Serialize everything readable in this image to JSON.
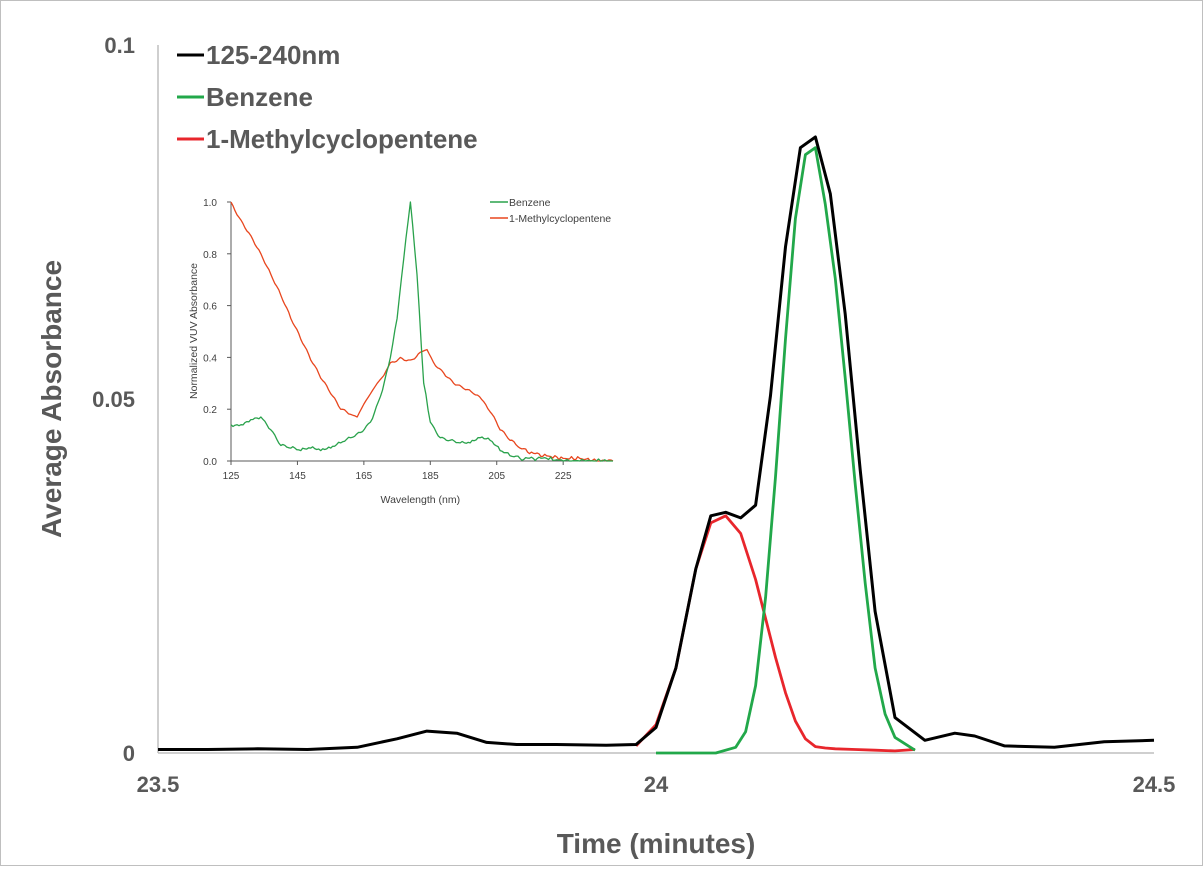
{
  "colors": {
    "total": "#000000",
    "benzene_main": "#22a84a",
    "methyl_main": "#e8262c",
    "benzene_inset": "#2aa24c",
    "methyl_inset": "#e8461e",
    "axis": "#bfbfbf",
    "text": "#595959"
  },
  "chart_data": [
    {
      "type": "line",
      "title": "",
      "xlabel": "Time (minutes)",
      "ylabel": "Average Absorbance",
      "xlim": [
        23.5,
        24.5
      ],
      "ylim": [
        0,
        0.1
      ],
      "x_ticks": [
        {
          "value": 23.5,
          "label": "23.5"
        },
        {
          "value": 24.0,
          "label": "24"
        },
        {
          "value": 24.5,
          "label": "24.5"
        }
      ],
      "y_ticks": [
        {
          "value": 0,
          "label": "0"
        },
        {
          "value": 0.05,
          "label": "0.05"
        },
        {
          "value": 0.1,
          "label": "0.1"
        }
      ],
      "grid": false,
      "legend_position": "top-left",
      "series": [
        {
          "name": "125-240nm",
          "color": "#000000",
          "x": [
            23.5,
            23.55,
            23.6,
            23.65,
            23.7,
            23.74,
            23.77,
            23.8,
            23.83,
            23.86,
            23.9,
            23.95,
            23.98,
            24.0,
            24.02,
            24.04,
            24.055,
            24.07,
            24.085,
            24.1,
            24.115,
            24.13,
            24.145,
            24.16,
            24.175,
            24.19,
            24.205,
            24.22,
            24.24,
            24.27,
            24.3,
            24.32,
            24.35,
            24.4,
            24.45,
            24.5
          ],
          "y": [
            0.0005,
            0.0005,
            0.0006,
            0.0005,
            0.0008,
            0.002,
            0.0031,
            0.0028,
            0.0015,
            0.0012,
            0.0012,
            0.0011,
            0.0012,
            0.0036,
            0.012,
            0.026,
            0.0335,
            0.034,
            0.0332,
            0.035,
            0.0505,
            0.0715,
            0.0855,
            0.087,
            0.079,
            0.062,
            0.04,
            0.02,
            0.005,
            0.0018,
            0.0028,
            0.0024,
            0.001,
            0.0008,
            0.0016,
            0.0018
          ]
        },
        {
          "name": "Benzene",
          "color": "#22a84a",
          "x": [
            24.0,
            24.06,
            24.08,
            24.09,
            24.1,
            24.11,
            24.12,
            24.13,
            24.14,
            24.15,
            24.16,
            24.17,
            24.18,
            24.19,
            24.2,
            24.21,
            24.22,
            24.23,
            24.24,
            24.26
          ],
          "y": [
            0,
            0,
            0.0008,
            0.003,
            0.0095,
            0.022,
            0.039,
            0.0585,
            0.0755,
            0.0845,
            0.0855,
            0.0775,
            0.067,
            0.053,
            0.038,
            0.024,
            0.012,
            0.0055,
            0.0022,
            0.0004
          ]
        },
        {
          "name": "1-Methylcyclopentene",
          "color": "#e8262c",
          "x": [
            23.98,
            24.0,
            24.02,
            24.04,
            24.055,
            24.07,
            24.085,
            24.1,
            24.11,
            24.12,
            24.13,
            24.14,
            24.15,
            24.16,
            24.17,
            24.18,
            24.2,
            24.22,
            24.24,
            24.26
          ],
          "y": [
            0.001,
            0.004,
            0.012,
            0.026,
            0.0325,
            0.0335,
            0.031,
            0.0245,
            0.019,
            0.0135,
            0.0085,
            0.0045,
            0.002,
            0.0009,
            0.0007,
            0.0006,
            0.0005,
            0.0004,
            0.0003,
            0.0005
          ]
        }
      ]
    },
    {
      "type": "line",
      "title": "",
      "xlabel": "Wavelength (nm)",
      "ylabel": "Normalized VUV Absorbance",
      "xlim": [
        125,
        240
      ],
      "ylim": [
        0,
        1.0
      ],
      "x_ticks": [
        {
          "value": 125,
          "label": "125"
        },
        {
          "value": 145,
          "label": "145"
        },
        {
          "value": 165,
          "label": "165"
        },
        {
          "value": 185,
          "label": "185"
        },
        {
          "value": 205,
          "label": "205"
        },
        {
          "value": 225,
          "label": "225"
        }
      ],
      "y_ticks": [
        {
          "value": 0,
          "label": "0.0"
        },
        {
          "value": 0.2,
          "label": "0.2"
        },
        {
          "value": 0.4,
          "label": "0.4"
        },
        {
          "value": 0.6,
          "label": "0.6"
        },
        {
          "value": 0.8,
          "label": "0.8"
        },
        {
          "value": 1.0,
          "label": "1.0"
        }
      ],
      "grid": false,
      "legend_position": "top-right",
      "series": [
        {
          "name": "Benzene",
          "color": "#2aa24c",
          "x": [
            125,
            128,
            131,
            134,
            137,
            140,
            143,
            146,
            149,
            152,
            155,
            158,
            161,
            164,
            167,
            170,
            173,
            175,
            177,
            179,
            181,
            183,
            185,
            188,
            191,
            194,
            197,
            200,
            203,
            206,
            209,
            212,
            216,
            220,
            225,
            230,
            235,
            240
          ],
          "y": [
            0.14,
            0.14,
            0.16,
            0.17,
            0.12,
            0.06,
            0.05,
            0.04,
            0.05,
            0.04,
            0.05,
            0.07,
            0.09,
            0.11,
            0.15,
            0.25,
            0.4,
            0.55,
            0.78,
            1.0,
            0.72,
            0.3,
            0.15,
            0.09,
            0.08,
            0.07,
            0.07,
            0.09,
            0.08,
            0.04,
            0.02,
            0.01,
            0.01,
            0.01,
            0.0,
            0.0,
            0.0,
            0.0
          ]
        },
        {
          "name": "1-Methylcyclopentene",
          "color": "#e8461e",
          "x": [
            125,
            128,
            131,
            134,
            137,
            140,
            143,
            146,
            149,
            152,
            155,
            158,
            161,
            163,
            165,
            167,
            169,
            171,
            173,
            176,
            179,
            182,
            184,
            186,
            189,
            192,
            195,
            198,
            201,
            203,
            206,
            209,
            212,
            216,
            220,
            225,
            230,
            235,
            240
          ],
          "y": [
            1.0,
            0.93,
            0.87,
            0.8,
            0.72,
            0.64,
            0.55,
            0.47,
            0.39,
            0.32,
            0.26,
            0.2,
            0.18,
            0.17,
            0.22,
            0.26,
            0.3,
            0.33,
            0.38,
            0.4,
            0.39,
            0.42,
            0.43,
            0.38,
            0.34,
            0.3,
            0.28,
            0.26,
            0.23,
            0.19,
            0.12,
            0.08,
            0.05,
            0.03,
            0.02,
            0.01,
            0.01,
            0.0,
            0.0
          ]
        }
      ]
    }
  ]
}
